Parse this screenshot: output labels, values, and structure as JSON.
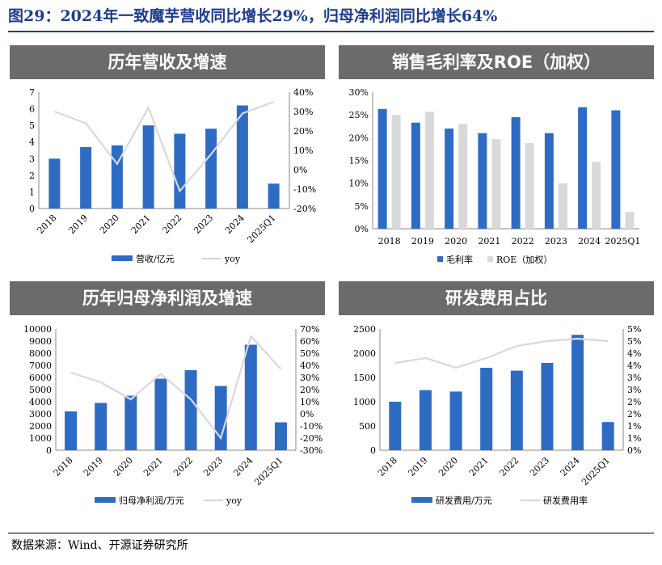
{
  "figure_title": "图29：2024年一致魔芋营收同比增长29%，归母净利润同比增长64%",
  "source": "数据来源：Wind、开源证券研究所",
  "colors": {
    "bar": "#2e6cc4",
    "line": "#d9d9d9",
    "bar_gray": "#d9d9d9",
    "header": "#6b6b6b",
    "title": "#1e3d8f"
  },
  "chart_data": [
    {
      "id": "revenue",
      "type": "bar",
      "header": "历年营收及增速",
      "categories": [
        "2018",
        "2019",
        "2020",
        "2021",
        "2022",
        "2023",
        "2024",
        "2025Q1"
      ],
      "y_left": {
        "min": 0,
        "max": 7,
        "step": 1,
        "ticks": [
          "0",
          "1",
          "2",
          "3",
          "4",
          "5",
          "6",
          "7"
        ]
      },
      "y_right": {
        "min": -20,
        "max": 40,
        "step": 10,
        "ticks": [
          "-20%",
          "-10%",
          "0%",
          "10%",
          "20%",
          "30%",
          "40%"
        ]
      },
      "series": [
        {
          "name": "营收/亿元",
          "kind": "bar",
          "axis": "left",
          "values": [
            3.0,
            3.7,
            3.8,
            5.0,
            4.5,
            4.8,
            6.2,
            1.5
          ]
        },
        {
          "name": "yoy",
          "kind": "line",
          "axis": "right",
          "values": [
            30,
            24,
            3,
            32,
            -11,
            8,
            29,
            35
          ]
        }
      ],
      "legend_position": "bottom"
    },
    {
      "id": "margin",
      "type": "bar",
      "header": "销售毛利率及ROE（加权）",
      "categories": [
        "2018",
        "2019",
        "2020",
        "2021",
        "2022",
        "2023",
        "2024",
        "2025Q1"
      ],
      "y_left": {
        "min": 0,
        "max": 30,
        "step": 5,
        "ticks": [
          "0%",
          "5%",
          "10%",
          "15%",
          "20%",
          "25%",
          "30%"
        ]
      },
      "series": [
        {
          "name": "毛利率",
          "kind": "bar",
          "axis": "left",
          "values": [
            26.3,
            23.3,
            22.0,
            21.0,
            24.5,
            21.0,
            26.7,
            26.0
          ]
        },
        {
          "name": "ROE（加权）",
          "kind": "bar_gray",
          "axis": "left",
          "values": [
            25.0,
            25.7,
            23.0,
            19.7,
            18.8,
            10.0,
            14.7,
            3.7
          ]
        }
      ],
      "legend_position": "bottom"
    },
    {
      "id": "profit",
      "type": "bar",
      "header": "历年归母净利润及增速",
      "categories": [
        "2018",
        "2019",
        "2020",
        "2021",
        "2022",
        "2023",
        "2024",
        "2025Q1"
      ],
      "y_left": {
        "min": 0,
        "max": 10000,
        "step": 1000,
        "ticks": [
          "0",
          "1000",
          "2000",
          "3000",
          "4000",
          "5000",
          "6000",
          "7000",
          "8000",
          "9000",
          "10000"
        ]
      },
      "y_right": {
        "min": -30,
        "max": 70,
        "step": 10,
        "ticks": [
          "-30%",
          "-20%",
          "-10%",
          "0%",
          "10%",
          "20%",
          "30%",
          "40%",
          "50%",
          "60%",
          "70%"
        ]
      },
      "series": [
        {
          "name": "归母净利润/万元",
          "kind": "bar",
          "axis": "left",
          "values": [
            3200,
            3900,
            4500,
            5900,
            6600,
            5300,
            8700,
            2300
          ]
        },
        {
          "name": "yoy",
          "kind": "line",
          "axis": "right",
          "values": [
            34,
            26,
            12,
            33,
            12,
            -20,
            64,
            37
          ]
        }
      ],
      "legend_position": "bottom"
    },
    {
      "id": "rd",
      "type": "bar",
      "header": "研发费用占比",
      "categories": [
        "2018",
        "2019",
        "2020",
        "2021",
        "2022",
        "2023",
        "2024",
        "2025Q1"
      ],
      "y_left": {
        "min": 0,
        "max": 2500,
        "step": 500,
        "ticks": [
          "0",
          "500",
          "1000",
          "1500",
          "2000",
          "2500"
        ]
      },
      "y_right": {
        "min": 0,
        "max": 5,
        "step": 0.5,
        "ticks": [
          "0%",
          "1%",
          "1%",
          "2%",
          "2%",
          "3%",
          "3%",
          "4%",
          "4%",
          "5%",
          "5%"
        ]
      },
      "series": [
        {
          "name": "研发费用/万元",
          "kind": "bar",
          "axis": "left",
          "values": [
            1000,
            1240,
            1210,
            1700,
            1640,
            1800,
            2380,
            580
          ]
        },
        {
          "name": "研发费用率",
          "kind": "line",
          "axis": "right",
          "values": [
            3.6,
            3.8,
            3.4,
            3.8,
            4.3,
            4.5,
            4.6,
            4.5
          ]
        }
      ],
      "legend_position": "bottom"
    }
  ]
}
